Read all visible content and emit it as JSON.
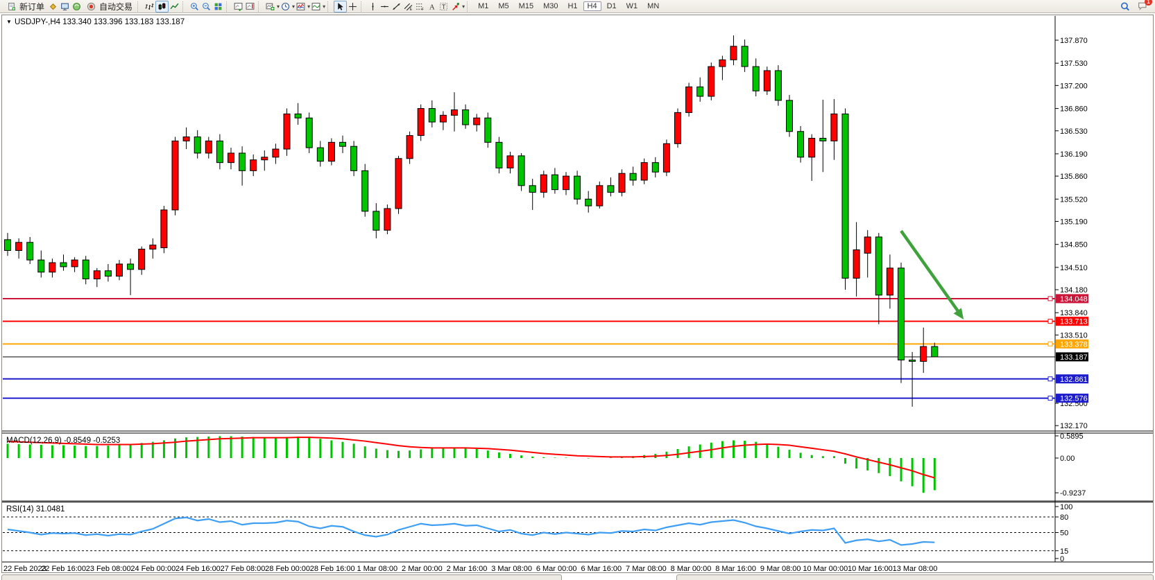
{
  "toolbar": {
    "items": [
      {
        "type": "btn-text",
        "name": "new-order-button",
        "kind": "doc",
        "label": "新订单"
      },
      {
        "type": "icon",
        "name": "charts-icon",
        "kind": "diamond"
      },
      {
        "type": "icon",
        "name": "market-watch-icon",
        "kind": "monitor"
      },
      {
        "type": "icon",
        "name": "strategy-tester-icon",
        "kind": "orb"
      },
      {
        "type": "btn-text",
        "name": "auto-trading-button",
        "kind": "autotrade",
        "label": "自动交易"
      },
      {
        "type": "sep"
      },
      {
        "type": "icon",
        "name": "bar-chart-type-icon",
        "kind": "bars"
      },
      {
        "type": "icon",
        "name": "candlestick-chart-type-icon",
        "kind": "candles",
        "active": true
      },
      {
        "type": "icon",
        "name": "line-chart-type-icon",
        "kind": "linechart"
      },
      {
        "type": "sep"
      },
      {
        "type": "icon",
        "name": "zoom-in-icon",
        "kind": "magplus"
      },
      {
        "type": "icon",
        "name": "zoom-out-icon",
        "kind": "magminus"
      },
      {
        "type": "icon",
        "name": "tile-windows-icon",
        "kind": "tiles"
      },
      {
        "type": "sep"
      },
      {
        "type": "icon",
        "name": "auto-scroll-icon",
        "kind": "chartscroll"
      },
      {
        "type": "icon",
        "name": "chart-shift-icon",
        "kind": "chartshift"
      },
      {
        "type": "sep"
      },
      {
        "type": "icon",
        "name": "new-chart-icon",
        "kind": "chartplus",
        "caret": true
      },
      {
        "type": "icon",
        "name": "periods-icon",
        "kind": "clock",
        "caret": true
      },
      {
        "type": "icon",
        "name": "indicators-icon",
        "kind": "indicator",
        "caret": true
      },
      {
        "type": "icon",
        "name": "templates-icon",
        "kind": "template",
        "caret": true
      },
      {
        "type": "sep"
      },
      {
        "type": "icon",
        "name": "cursor-icon",
        "kind": "cursor",
        "active": true
      },
      {
        "type": "icon",
        "name": "crosshair-icon",
        "kind": "crosshair"
      },
      {
        "type": "sep"
      },
      {
        "type": "icon",
        "name": "vertical-line-icon",
        "kind": "vline"
      },
      {
        "type": "icon",
        "name": "horizontal-line-icon",
        "kind": "hline"
      },
      {
        "type": "icon",
        "name": "trendline-icon",
        "kind": "trend"
      },
      {
        "type": "icon",
        "name": "equidistant-channel-icon",
        "kind": "channel"
      },
      {
        "type": "icon",
        "name": "fibonacci-icon",
        "kind": "fib"
      },
      {
        "type": "icon",
        "name": "text-icon",
        "kind": "textA"
      },
      {
        "type": "icon",
        "name": "text-label-icon",
        "kind": "textT"
      },
      {
        "type": "icon",
        "name": "arrows-icon",
        "kind": "arrowsym",
        "caret": true
      },
      {
        "type": "sep"
      }
    ],
    "timeframes": [
      "M1",
      "M5",
      "M15",
      "M30",
      "H1",
      "H4",
      "D1",
      "W1",
      "MN"
    ],
    "active_timeframe": "H4",
    "notification_badge": "1"
  },
  "chart_data": {
    "type": "candlestick",
    "symbol": "USDJPY-",
    "period": "H4",
    "title_text": "USDJPY-,H4  133.340 133.396 133.183 133.187",
    "last_ohlc": {
      "open": "133.340",
      "high": "133.396",
      "low": "133.183",
      "close": "133.187"
    },
    "up_color": "#ff0000",
    "down_color": "#00c400",
    "ylim": [
      132.09,
      137.95
    ],
    "y_ticks": [
      "137.870",
      "137.530",
      "137.200",
      "136.860",
      "136.530",
      "136.190",
      "135.860",
      "135.520",
      "135.190",
      "134.850",
      "134.510",
      "134.180",
      "133.840",
      "133.510",
      "132.500",
      "132.170"
    ],
    "x_labels": [
      "22 Feb 2023",
      "22 Feb 16:00",
      "23 Feb 08:00",
      "24 Feb 00:00",
      "24 Feb 16:00",
      "27 Feb 08:00",
      "28 Feb 00:00",
      "28 Feb 16:00",
      "1 Mar 08:00",
      "2 Mar 00:00",
      "2 Mar 16:00",
      "3 Mar 08:00",
      "6 Mar 00:00",
      "6 Mar 16:00",
      "7 Mar 08:00",
      "8 Mar 00:00",
      "8 Mar 16:00",
      "9 Mar 08:00",
      "10 Mar 00:00",
      "10 Mar 16:00",
      "13 Mar 08:00"
    ],
    "hlines": [
      {
        "price": 134.048,
        "label": "134.048",
        "color": "#cc1438"
      },
      {
        "price": 133.713,
        "label": "133.713",
        "color": "#ff0000"
      },
      {
        "price": 133.378,
        "label": "133.378",
        "color": "#ffa600"
      },
      {
        "price": 133.187,
        "label": "133.187",
        "color": "#000000"
      },
      {
        "price": 132.861,
        "label": "132.861",
        "color": "#1c1ccd"
      },
      {
        "price": 132.576,
        "label": "132.576",
        "color": "#1c1ccd"
      }
    ],
    "candles": [
      [
        134.92,
        135.02,
        134.68,
        134.76
      ],
      [
        134.76,
        134.94,
        134.64,
        134.88
      ],
      [
        134.88,
        134.96,
        134.56,
        134.62
      ],
      [
        134.62,
        134.76,
        134.36,
        134.44
      ],
      [
        134.44,
        134.64,
        134.36,
        134.58
      ],
      [
        134.58,
        134.7,
        134.46,
        134.52
      ],
      [
        134.52,
        134.66,
        134.44,
        134.62
      ],
      [
        134.62,
        134.68,
        134.26,
        134.34
      ],
      [
        134.34,
        134.5,
        134.22,
        134.46
      ],
      [
        134.46,
        134.56,
        134.3,
        134.38
      ],
      [
        134.38,
        134.62,
        134.32,
        134.56
      ],
      [
        134.56,
        134.64,
        134.1,
        134.48
      ],
      [
        134.48,
        134.82,
        134.4,
        134.78
      ],
      [
        134.78,
        134.94,
        134.64,
        134.84
      ],
      [
        134.8,
        135.42,
        134.72,
        135.36
      ],
      [
        135.36,
        136.44,
        135.28,
        136.38
      ],
      [
        136.38,
        136.58,
        136.26,
        136.44
      ],
      [
        136.44,
        136.54,
        136.12,
        136.2
      ],
      [
        136.2,
        136.44,
        136.12,
        136.38
      ],
      [
        136.38,
        136.48,
        135.96,
        136.06
      ],
      [
        136.06,
        136.28,
        135.96,
        136.2
      ],
      [
        136.2,
        136.3,
        135.72,
        135.94
      ],
      [
        135.94,
        136.18,
        135.86,
        136.1
      ],
      [
        136.1,
        136.24,
        135.94,
        136.14
      ],
      [
        136.14,
        136.34,
        136.04,
        136.26
      ],
      [
        136.26,
        136.86,
        136.16,
        136.78
      ],
      [
        136.78,
        136.94,
        136.62,
        136.72
      ],
      [
        136.72,
        136.8,
        136.2,
        136.28
      ],
      [
        136.28,
        136.38,
        136.0,
        136.08
      ],
      [
        136.08,
        136.42,
        136.02,
        136.36
      ],
      [
        136.36,
        136.46,
        136.2,
        136.3
      ],
      [
        136.3,
        136.38,
        135.86,
        135.94
      ],
      [
        135.94,
        136.04,
        135.26,
        135.34
      ],
      [
        135.34,
        135.46,
        134.94,
        135.06
      ],
      [
        135.06,
        135.44,
        135.0,
        135.38
      ],
      [
        135.38,
        136.16,
        135.3,
        136.12
      ],
      [
        136.12,
        136.52,
        136.04,
        136.46
      ],
      [
        136.46,
        136.92,
        136.38,
        136.86
      ],
      [
        136.86,
        136.98,
        136.58,
        136.66
      ],
      [
        136.66,
        136.82,
        136.54,
        136.76
      ],
      [
        136.76,
        137.1,
        136.52,
        136.84
      ],
      [
        136.84,
        136.92,
        136.56,
        136.62
      ],
      [
        136.62,
        136.78,
        136.52,
        136.72
      ],
      [
        136.72,
        136.8,
        136.28,
        136.36
      ],
      [
        136.36,
        136.44,
        135.9,
        135.98
      ],
      [
        135.98,
        136.22,
        135.9,
        136.16
      ],
      [
        136.16,
        136.2,
        135.64,
        135.72
      ],
      [
        135.72,
        135.82,
        135.36,
        135.62
      ],
      [
        135.62,
        135.94,
        135.54,
        135.88
      ],
      [
        135.88,
        135.98,
        135.6,
        135.66
      ],
      [
        135.66,
        135.92,
        135.58,
        135.86
      ],
      [
        135.86,
        135.94,
        135.44,
        135.52
      ],
      [
        135.52,
        135.64,
        135.32,
        135.42
      ],
      [
        135.42,
        135.78,
        135.38,
        135.72
      ],
      [
        135.72,
        135.84,
        135.56,
        135.62
      ],
      [
        135.62,
        135.96,
        135.56,
        135.9
      ],
      [
        135.9,
        136.0,
        135.72,
        135.8
      ],
      [
        135.8,
        136.12,
        135.74,
        136.06
      ],
      [
        136.06,
        136.14,
        135.84,
        135.92
      ],
      [
        135.92,
        136.4,
        135.86,
        136.34
      ],
      [
        136.34,
        136.86,
        136.28,
        136.8
      ],
      [
        136.8,
        137.24,
        136.74,
        137.18
      ],
      [
        137.18,
        137.32,
        136.96,
        137.04
      ],
      [
        137.04,
        137.54,
        136.98,
        137.48
      ],
      [
        137.48,
        137.64,
        137.28,
        137.58
      ],
      [
        137.58,
        137.94,
        137.5,
        137.78
      ],
      [
        137.78,
        137.88,
        137.4,
        137.48
      ],
      [
        137.48,
        137.6,
        137.04,
        137.12
      ],
      [
        137.12,
        137.48,
        137.06,
        137.42
      ],
      [
        137.42,
        137.5,
        136.9,
        136.98
      ],
      [
        136.98,
        137.06,
        136.44,
        136.52
      ],
      [
        136.52,
        136.6,
        136.06,
        136.14
      ],
      [
        136.14,
        136.48,
        135.79,
        136.42
      ],
      [
        136.42,
        136.99,
        135.92,
        136.38
      ],
      [
        136.38,
        137.0,
        136.1,
        136.78
      ],
      [
        136.78,
        136.86,
        134.18,
        134.35
      ],
      [
        134.35,
        135.18,
        134.08,
        134.77
      ],
      [
        134.72,
        135.06,
        134.36,
        134.96
      ],
      [
        134.96,
        135.02,
        133.67,
        134.1
      ],
      [
        134.1,
        134.7,
        133.9,
        134.5
      ],
      [
        134.5,
        134.58,
        132.8,
        133.14
      ],
      [
        133.14,
        133.26,
        132.45,
        133.12
      ],
      [
        133.12,
        133.62,
        132.95,
        133.34
      ],
      [
        133.34,
        133.396,
        133.183,
        133.187
      ]
    ],
    "macd": {
      "label": "MACD(12,26,9)",
      "value_text": "-0.8549",
      "signal_text": "-0.5253",
      "axis": [
        "0.5895",
        "0.00",
        "-0.9237"
      ],
      "hist_color": "#00c400",
      "signal_color": "#ff0000",
      "histogram": [
        0.38,
        0.37,
        0.36,
        0.35,
        0.34,
        0.34,
        0.33,
        0.32,
        0.32,
        0.33,
        0.35,
        0.37,
        0.4,
        0.43,
        0.47,
        0.52,
        0.55,
        0.56,
        0.57,
        0.58,
        0.58,
        0.57,
        0.56,
        0.55,
        0.55,
        0.56,
        0.57,
        0.55,
        0.51,
        0.47,
        0.43,
        0.38,
        0.31,
        0.25,
        0.21,
        0.19,
        0.2,
        0.23,
        0.26,
        0.27,
        0.28,
        0.27,
        0.24,
        0.2,
        0.15,
        0.11,
        0.07,
        0.04,
        0.02,
        0.01,
        0.01,
        0.0,
        -0.01,
        0.0,
        0.01,
        0.03,
        0.05,
        0.08,
        0.11,
        0.17,
        0.24,
        0.31,
        0.36,
        0.41,
        0.45,
        0.47,
        0.46,
        0.43,
        0.37,
        0.3,
        0.22,
        0.14,
        0.08,
        0.05,
        0.05,
        -0.15,
        -0.28,
        -0.33,
        -0.4,
        -0.48,
        -0.62,
        -0.75,
        -0.9237,
        -0.8549
      ],
      "signal": [
        0.44,
        0.43,
        0.42,
        0.41,
        0.4,
        0.39,
        0.38,
        0.37,
        0.36,
        0.36,
        0.36,
        0.36,
        0.37,
        0.38,
        0.4,
        0.42,
        0.45,
        0.47,
        0.49,
        0.51,
        0.52,
        0.53,
        0.54,
        0.54,
        0.54,
        0.54,
        0.55,
        0.55,
        0.54,
        0.53,
        0.51,
        0.48,
        0.45,
        0.41,
        0.37,
        0.33,
        0.3,
        0.28,
        0.27,
        0.27,
        0.27,
        0.27,
        0.26,
        0.25,
        0.23,
        0.21,
        0.18,
        0.15,
        0.12,
        0.1,
        0.08,
        0.06,
        0.05,
        0.04,
        0.03,
        0.03,
        0.03,
        0.04,
        0.05,
        0.07,
        0.1,
        0.14,
        0.18,
        0.22,
        0.27,
        0.31,
        0.34,
        0.36,
        0.37,
        0.36,
        0.34,
        0.3,
        0.26,
        0.22,
        0.18,
        0.11,
        0.03,
        -0.04,
        -0.11,
        -0.18,
        -0.26,
        -0.34,
        -0.44,
        -0.5253
      ]
    },
    "rsi": {
      "label": "RSI(14)",
      "value_text": "31.0481",
      "axis": [
        "100",
        "80",
        "50",
        "15",
        "0"
      ],
      "levels": [
        80,
        50,
        15
      ],
      "color": "#3e9ef4",
      "series": [
        56,
        53,
        50,
        46,
        49,
        48,
        49,
        45,
        47,
        44,
        47,
        46,
        52,
        57,
        67,
        77,
        79,
        73,
        76,
        70,
        72,
        65,
        68,
        68,
        69,
        73,
        71,
        62,
        58,
        63,
        61,
        52,
        45,
        42,
        46,
        55,
        61,
        67,
        64,
        65,
        67,
        63,
        64,
        58,
        52,
        55,
        48,
        45,
        50,
        47,
        50,
        48,
        46,
        50,
        49,
        53,
        52,
        56,
        54,
        60,
        64,
        68,
        65,
        70,
        72,
        74,
        69,
        62,
        58,
        53,
        48,
        52,
        55,
        54,
        58,
        30,
        35,
        37,
        33,
        36,
        26,
        28,
        32,
        31.05
      ]
    },
    "annotation_arrow": {
      "from_bar": 80,
      "from_price": 135.05,
      "to_bar": 85.6,
      "to_price": 133.74,
      "color": "#3fa23c"
    }
  }
}
